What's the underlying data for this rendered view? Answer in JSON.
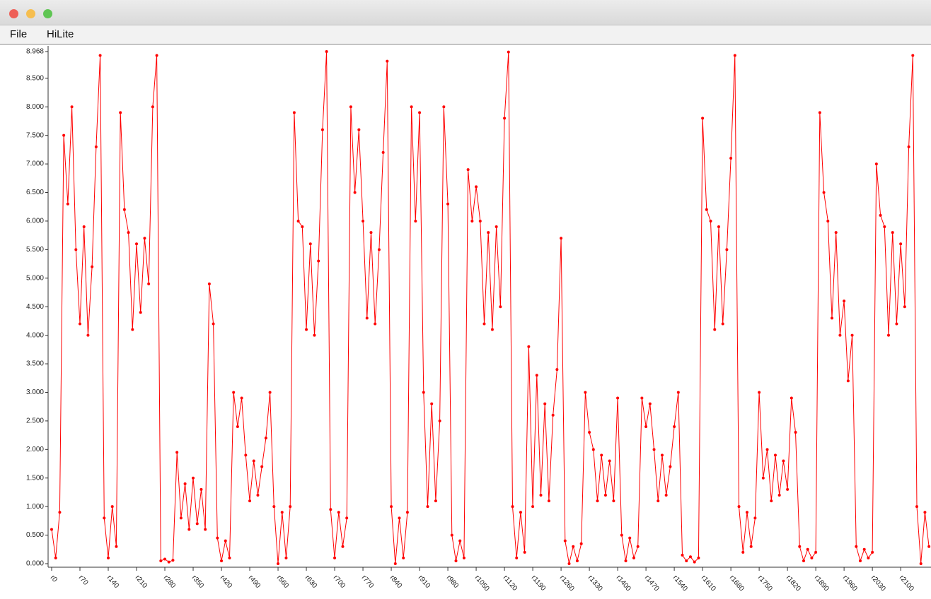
{
  "menu": [
    "File",
    "HiLite"
  ],
  "chart_data": {
    "type": "line",
    "color": "#ff0000",
    "x": [
      0,
      10,
      20,
      30,
      40,
      50,
      60,
      70,
      80,
      90,
      100,
      110,
      120,
      130,
      140,
      150,
      160,
      170,
      180,
      190,
      200,
      210,
      220,
      230,
      240,
      250,
      260,
      270,
      280,
      290,
      300,
      310,
      320,
      330,
      340,
      350,
      360,
      370,
      380,
      390,
      400,
      410,
      420,
      430,
      440,
      450,
      460,
      470,
      480,
      490,
      500,
      510,
      520,
      530,
      540,
      550,
      560,
      570,
      580,
      590,
      600,
      610,
      620,
      630,
      640,
      650,
      660,
      670,
      680,
      690,
      700,
      710,
      720,
      730,
      740,
      750,
      760,
      770,
      780,
      790,
      800,
      810,
      820,
      830,
      840,
      850,
      860,
      870,
      880,
      890,
      900,
      910,
      920,
      930,
      940,
      950,
      960,
      970,
      980,
      990,
      1000,
      1010,
      1020,
      1030,
      1040,
      1050,
      1060,
      1070,
      1080,
      1090,
      1100,
      1110,
      1120,
      1130,
      1140,
      1150,
      1160,
      1170,
      1180,
      1190,
      1200,
      1210,
      1220,
      1230,
      1240,
      1250,
      1260,
      1270,
      1280,
      1290,
      1300,
      1310,
      1320,
      1330,
      1340,
      1350,
      1360,
      1370,
      1380,
      1390,
      1400,
      1410,
      1420,
      1430,
      1440,
      1450,
      1460,
      1470,
      1480,
      1490,
      1500,
      1510,
      1520,
      1530,
      1540,
      1550,
      1560,
      1570,
      1580,
      1590,
      1600,
      1610,
      1620,
      1630,
      1640,
      1650,
      1660,
      1670,
      1680,
      1690,
      1700,
      1710,
      1720,
      1730,
      1740,
      1750,
      1760,
      1770,
      1780,
      1790,
      1800,
      1810,
      1820,
      1830,
      1840,
      1850,
      1860,
      1870,
      1880,
      1890,
      1900,
      1910,
      1920,
      1930,
      1940,
      1950,
      1960,
      1970,
      1980,
      1990,
      2000,
      2010,
      2020,
      2030,
      2040,
      2050,
      2060,
      2070,
      2080,
      2090,
      2100,
      2110,
      2120,
      2130,
      2140,
      2150,
      2160,
      2170
    ],
    "values": [
      0.6,
      0.1,
      0.9,
      7.5,
      6.3,
      8.0,
      5.5,
      4.2,
      5.9,
      4.0,
      5.2,
      7.3,
      8.9,
      0.8,
      0.1,
      1.0,
      0.3,
      7.9,
      6.2,
      5.8,
      4.1,
      5.6,
      4.4,
      5.7,
      4.9,
      8.0,
      8.9,
      0.05,
      0.08,
      0.03,
      0.06,
      1.95,
      0.8,
      1.4,
      0.6,
      1.5,
      0.7,
      1.3,
      0.6,
      4.9,
      4.2,
      0.45,
      0.05,
      0.4,
      0.1,
      3.0,
      2.4,
      2.9,
      1.9,
      1.1,
      1.8,
      1.2,
      1.7,
      2.2,
      3.0,
      1.0,
      0.0,
      0.9,
      0.1,
      1.0,
      7.9,
      6.0,
      5.9,
      4.1,
      5.6,
      4.0,
      5.3,
      7.6,
      8.968,
      0.95,
      0.1,
      0.9,
      0.3,
      0.8,
      8.0,
      6.5,
      7.6,
      6.0,
      4.3,
      5.8,
      4.2,
      5.5,
      7.2,
      8.8,
      1.0,
      0.0,
      0.8,
      0.1,
      0.9,
      8.0,
      6.0,
      7.9,
      3.0,
      1.0,
      2.8,
      1.1,
      2.5,
      8.0,
      6.3,
      0.5,
      0.05,
      0.4,
      0.1,
      6.9,
      6.0,
      6.6,
      6.0,
      4.2,
      5.8,
      4.1,
      5.9,
      4.5,
      7.8,
      8.96,
      1.0,
      0.1,
      0.9,
      0.2,
      3.8,
      1.0,
      3.3,
      1.2,
      2.8,
      1.1,
      2.6,
      3.4,
      5.7,
      0.4,
      0.0,
      0.3,
      0.05,
      0.35,
      3.0,
      2.3,
      2.0,
      1.1,
      1.9,
      1.2,
      1.8,
      1.1,
      2.9,
      0.5,
      0.05,
      0.45,
      0.1,
      0.3,
      2.9,
      2.4,
      2.8,
      2.0,
      1.1,
      1.9,
      1.2,
      1.7,
      2.4,
      3.0,
      0.15,
      0.05,
      0.12,
      0.03,
      0.1,
      7.8,
      6.2,
      6.0,
      4.1,
      5.9,
      4.2,
      5.5,
      7.1,
      8.9,
      1.0,
      0.2,
      0.9,
      0.3,
      0.8,
      3.0,
      1.5,
      2.0,
      1.1,
      1.9,
      1.2,
      1.8,
      1.3,
      2.9,
      2.3,
      0.3,
      0.05,
      0.25,
      0.1,
      0.2,
      7.9,
      6.5,
      6.0,
      4.3,
      5.8,
      4.0,
      4.6,
      3.2,
      4.0,
      0.3,
      0.05,
      0.25,
      0.1,
      0.2,
      7.0,
      6.1,
      5.9,
      4.0,
      5.8,
      4.2,
      5.6,
      4.5,
      7.3,
      8.9,
      1.0,
      0.0,
      0.9,
      0.3
    ],
    "xlim": [
      0,
      2175
    ],
    "xticks": [
      {
        "value": 0,
        "label": "r0"
      },
      {
        "value": 70,
        "label": "r70"
      },
      {
        "value": 140,
        "label": "r140"
      },
      {
        "value": 210,
        "label": "r210"
      },
      {
        "value": 280,
        "label": "r280"
      },
      {
        "value": 350,
        "label": "r350"
      },
      {
        "value": 420,
        "label": "r420"
      },
      {
        "value": 490,
        "label": "r490"
      },
      {
        "value": 560,
        "label": "r560"
      },
      {
        "value": 630,
        "label": "r630"
      },
      {
        "value": 700,
        "label": "r700"
      },
      {
        "value": 770,
        "label": "r770"
      },
      {
        "value": 840,
        "label": "r840"
      },
      {
        "value": 910,
        "label": "r910"
      },
      {
        "value": 980,
        "label": "r980"
      },
      {
        "value": 1050,
        "label": "r1050"
      },
      {
        "value": 1120,
        "label": "r1120"
      },
      {
        "value": 1190,
        "label": "r1190"
      },
      {
        "value": 1260,
        "label": "r1260"
      },
      {
        "value": 1330,
        "label": "r1330"
      },
      {
        "value": 1400,
        "label": "r1400"
      },
      {
        "value": 1470,
        "label": "r1470"
      },
      {
        "value": 1540,
        "label": "r1540"
      },
      {
        "value": 1610,
        "label": "r1610"
      },
      {
        "value": 1680,
        "label": "r1680"
      },
      {
        "value": 1750,
        "label": "r1750"
      },
      {
        "value": 1820,
        "label": "r1820"
      },
      {
        "value": 1890,
        "label": "r1890"
      },
      {
        "value": 1960,
        "label": "r1960"
      },
      {
        "value": 2030,
        "label": "r2030"
      },
      {
        "value": 2100,
        "label": "r2100"
      }
    ],
    "ylim": [
      0,
      8.968
    ],
    "yticks": [
      {
        "value": 0,
        "label": "0.000"
      },
      {
        "value": 0.5,
        "label": "0.500"
      },
      {
        "value": 1,
        "label": "1.000"
      },
      {
        "value": 1.5,
        "label": "1.500"
      },
      {
        "value": 2,
        "label": "2.000"
      },
      {
        "value": 2.5,
        "label": "2.500"
      },
      {
        "value": 3,
        "label": "3.000"
      },
      {
        "value": 3.5,
        "label": "3.500"
      },
      {
        "value": 4,
        "label": "4.000"
      },
      {
        "value": 4.5,
        "label": "4.500"
      },
      {
        "value": 5,
        "label": "5.000"
      },
      {
        "value": 5.5,
        "label": "5.500"
      },
      {
        "value": 6,
        "label": "6.000"
      },
      {
        "value": 6.5,
        "label": "6.500"
      },
      {
        "value": 7,
        "label": "7.000"
      },
      {
        "value": 7.5,
        "label": "7.500"
      },
      {
        "value": 8,
        "label": "8.000"
      },
      {
        "value": 8.5,
        "label": "8.500"
      },
      {
        "value": 8.968,
        "label": "8.968"
      }
    ]
  }
}
